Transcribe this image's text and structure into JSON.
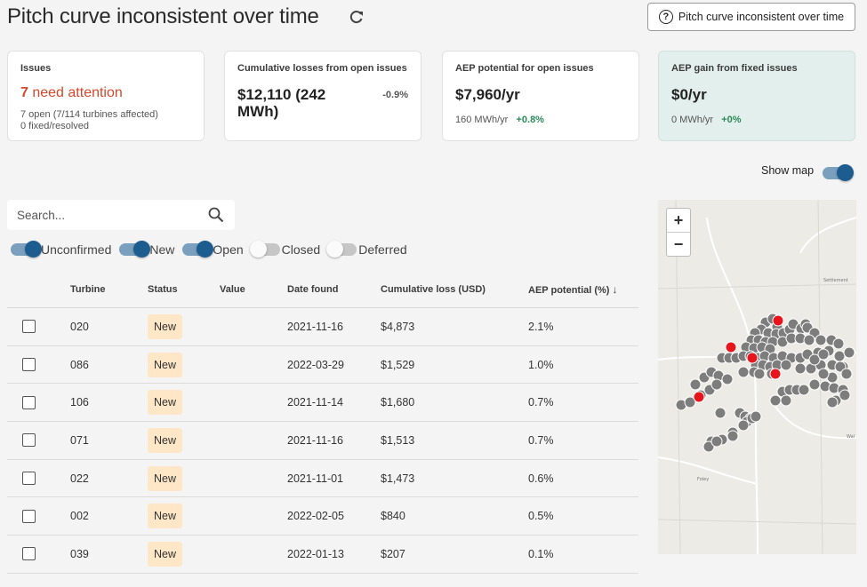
{
  "page": {
    "title": "Pitch curve inconsistent over time",
    "help_button_label": "Pitch curve inconsistent over time"
  },
  "cards": {
    "issues": {
      "label": "Issues",
      "count": "7",
      "count_suffix": "need attention",
      "open_text": "7 open (7/114 turbines affected)",
      "fixed_text": "0 fixed/resolved"
    },
    "losses": {
      "label": "Cumulative losses from open issues",
      "value": "$12,110 (242 MWh)",
      "delta": "-0.9%"
    },
    "aep_potential": {
      "label": "AEP potential for open issues",
      "value": "$7,960/yr",
      "sub": "160 MWh/yr",
      "delta": "+0.8%"
    },
    "aep_gain": {
      "label": "AEP gain from fixed issues",
      "value": "$0/yr",
      "sub": "0 MWh/yr",
      "delta": "+0%"
    }
  },
  "show_map_label": "Show map",
  "search": {
    "placeholder": "Search..."
  },
  "filters": [
    {
      "label": "Unconfirmed",
      "on": true
    },
    {
      "label": "New",
      "on": true
    },
    {
      "label": "Open",
      "on": true
    },
    {
      "label": "Closed",
      "on": false
    },
    {
      "label": "Deferred",
      "on": false
    }
  ],
  "table": {
    "columns": [
      "Turbine",
      "Status",
      "Value",
      "Date found",
      "Cumulative loss (USD)",
      "AEP potential (%)"
    ],
    "rows": [
      {
        "turbine": "020",
        "status": "New",
        "value": "",
        "date": "2021-11-16",
        "loss": "$4,873",
        "aep": "2.1%"
      },
      {
        "turbine": "086",
        "status": "New",
        "value": "",
        "date": "2022-03-29",
        "loss": "$1,529",
        "aep": "1.0%"
      },
      {
        "turbine": "106",
        "status": "New",
        "value": "",
        "date": "2021-11-14",
        "loss": "$1,680",
        "aep": "0.7%"
      },
      {
        "turbine": "071",
        "status": "New",
        "value": "",
        "date": "2021-11-16",
        "loss": "$1,513",
        "aep": "0.7%"
      },
      {
        "turbine": "022",
        "status": "New",
        "value": "",
        "date": "2021-11-01",
        "loss": "$1,473",
        "aep": "0.6%"
      },
      {
        "turbine": "002",
        "status": "New",
        "value": "",
        "date": "2022-02-05",
        "loss": "$840",
        "aep": "0.5%"
      },
      {
        "turbine": "039",
        "status": "New",
        "value": "",
        "date": "2022-01-13",
        "loss": "$207",
        "aep": "0.1%"
      }
    ]
  },
  "map": {
    "zoom_in": "+",
    "zoom_out": "−",
    "labels": [
      "Settlement",
      "Foley",
      "Wal"
    ],
    "colors": {
      "turbine": "#7d7d7d",
      "flagged": "#e8141b",
      "road": "#ffffff",
      "land": "#ecebe6"
    }
  },
  "colors": {
    "accent": "#1d5c8f",
    "alert": "#d5482b",
    "positive": "#2a8a5a",
    "badge": "#fde7c6"
  }
}
